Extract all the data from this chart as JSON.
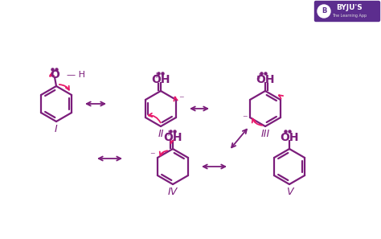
{
  "bg_color": "#ffffff",
  "line_color": "#7B1D7B",
  "arrow_color": "#E8196A",
  "text_color": "#7B1D7B",
  "dc_color": "#7B1D7B",
  "byju_bg": "#5C2D8E",
  "figsize": [
    4.74,
    2.97
  ],
  "dpi": 100,
  "structures": [
    "I",
    "II",
    "III",
    "IV",
    "V"
  ],
  "ring_r": 22,
  "lw": 1.6
}
